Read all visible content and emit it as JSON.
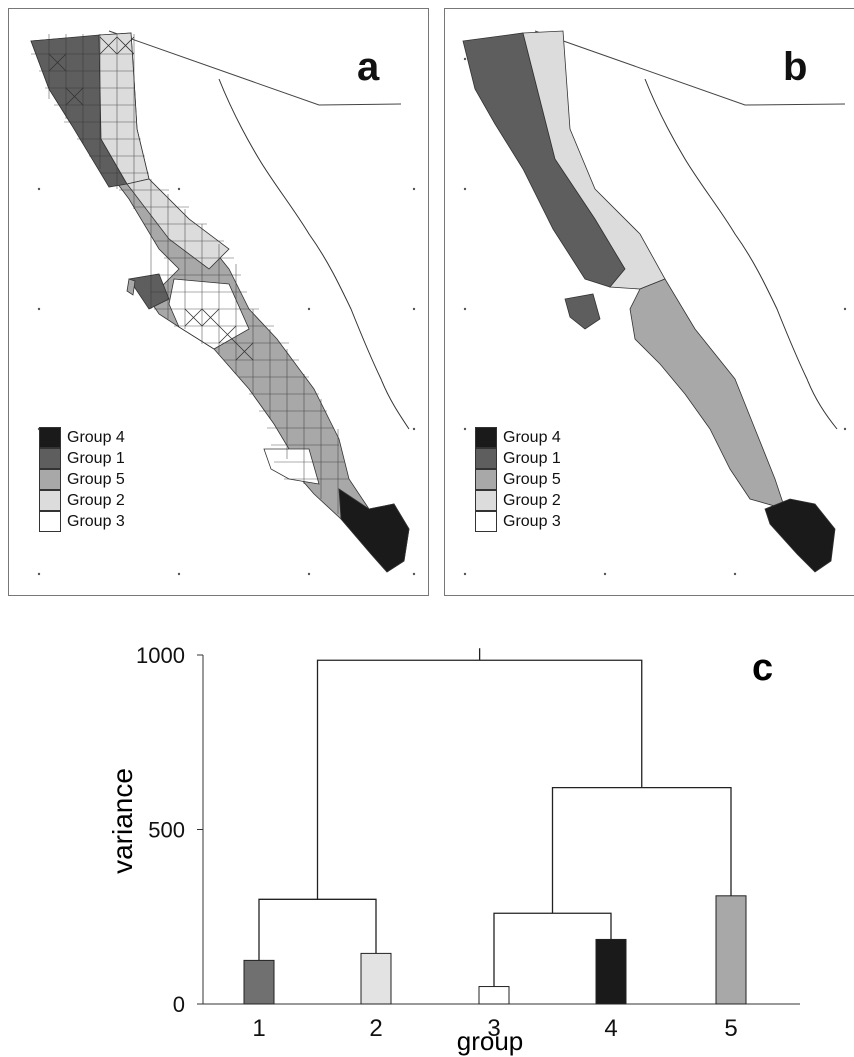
{
  "panels": [
    {
      "letter": "a"
    },
    {
      "letter": "b"
    }
  ],
  "legend": [
    {
      "label": "Group 4",
      "color": "#1a1a1a"
    },
    {
      "label": "Group 1",
      "color": "#5e5e5e"
    },
    {
      "label": "Group 5",
      "color": "#a8a8a8"
    },
    {
      "label": "Group 2",
      "color": "#dcdcdc"
    },
    {
      "label": "Group 3",
      "color": "#ffffff"
    }
  ],
  "chart_data": {
    "type": "bar",
    "panel_letter": "c",
    "ylabel": "variance",
    "xlabel": "group",
    "ylim": [
      0,
      1000
    ],
    "yticks": [
      0,
      500,
      1000
    ],
    "categories": [
      "1",
      "2",
      "3",
      "4",
      "5"
    ],
    "values": [
      125,
      145,
      50,
      185,
      310
    ],
    "colors": [
      "#707070",
      "#e3e3e3",
      "#ffffff",
      "#1a1a1a",
      "#a8a8a8"
    ],
    "dendrogram": {
      "merges": [
        {
          "left": "3",
          "right": "4",
          "height": 260
        },
        {
          "left": "1",
          "right": "2",
          "height": 300
        },
        {
          "left": "3-4",
          "right": "5",
          "height": 620
        },
        {
          "left": "1-2",
          "right": "3-4-5",
          "height": 985
        }
      ]
    }
  }
}
